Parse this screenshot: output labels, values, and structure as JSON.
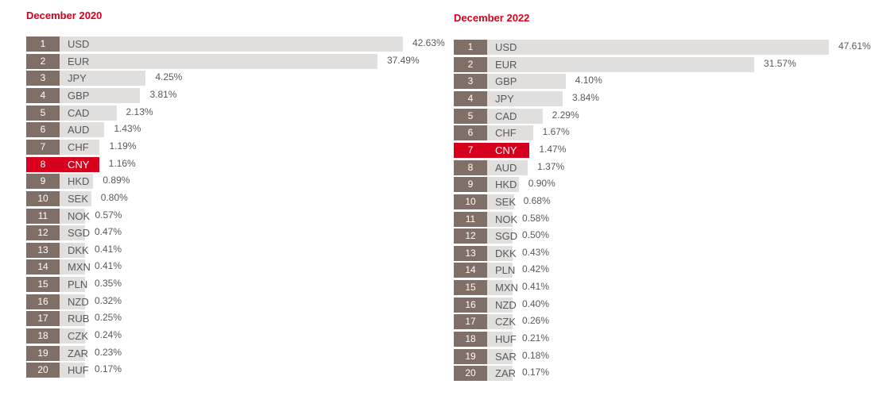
{
  "colors": {
    "rank_box": "#7f6f67",
    "bar": "#e1dfdd",
    "highlight": "#d6001c",
    "title": "#d6001c",
    "text": "#595959"
  },
  "chart_data": [
    {
      "type": "bar",
      "orientation": "horizontal",
      "title": "December 2020",
      "highlight": "CNY",
      "ranks": [
        "1",
        "2",
        "3",
        "4",
        "5",
        "6",
        "7",
        "8",
        "9",
        "10",
        "11",
        "12",
        "13",
        "14",
        "15",
        "16",
        "17",
        "18",
        "19",
        "20"
      ],
      "categories": [
        "USD",
        "EUR",
        "JPY",
        "GBP",
        "CAD",
        "AUD",
        "CHF",
        "CNY",
        "HKD",
        "SEK",
        "NOK",
        "SGD",
        "DKK",
        "MXN",
        "PLN",
        "NZD",
        "RUB",
        "CZK",
        "ZAR",
        "HUF"
      ],
      "values": [
        42.63,
        37.49,
        4.25,
        3.81,
        2.13,
        1.43,
        1.19,
        1.16,
        0.89,
        0.8,
        0.57,
        0.47,
        0.41,
        0.41,
        0.35,
        0.32,
        0.25,
        0.24,
        0.23,
        0.17
      ],
      "labels": [
        "42.63%",
        "37.49%",
        "4.25%",
        "3.81%",
        "2.13%",
        "1.43%",
        "1.19%",
        "1.16%",
        "0.89%",
        "0.80%",
        "0.57%",
        "0.47%",
        "0.41%",
        "0.41%",
        "0.35%",
        "0.32%",
        "0.25%",
        "0.24%",
        "0.23%",
        "0.17%"
      ]
    },
    {
      "type": "bar",
      "orientation": "horizontal",
      "title": "December 2022",
      "highlight": "CNY",
      "ranks": [
        "1",
        "2",
        "3",
        "4",
        "5",
        "6",
        "7",
        "8",
        "9",
        "10",
        "11",
        "12",
        "13",
        "14",
        "15",
        "16",
        "17",
        "18",
        "19",
        "20"
      ],
      "categories": [
        "USD",
        "EUR",
        "GBP",
        "JPY",
        "CAD",
        "CHF",
        "CNY",
        "AUD",
        "HKD",
        "SEK",
        "NOK",
        "SGD",
        "DKK",
        "PLN",
        "MXN",
        "NZD",
        "CZK",
        "HUF",
        "SAR",
        "ZAR"
      ],
      "values": [
        47.61,
        31.57,
        4.1,
        3.84,
        2.29,
        1.67,
        1.47,
        1.37,
        0.9,
        0.68,
        0.58,
        0.5,
        0.43,
        0.42,
        0.41,
        0.4,
        0.26,
        0.21,
        0.18,
        0.17
      ],
      "labels": [
        "47.61%",
        "31.57%",
        "4.10%",
        "3.84%",
        "2.29%",
        "1.67%",
        "1.47%",
        "1.37%",
        "0.90%",
        "0.68%",
        "0.58%",
        "0.50%",
        "0.43%",
        "0.42%",
        "0.41%",
        "0.40%",
        "0.26%",
        "0.21%",
        "0.18%",
        "0.17%"
      ]
    }
  ]
}
